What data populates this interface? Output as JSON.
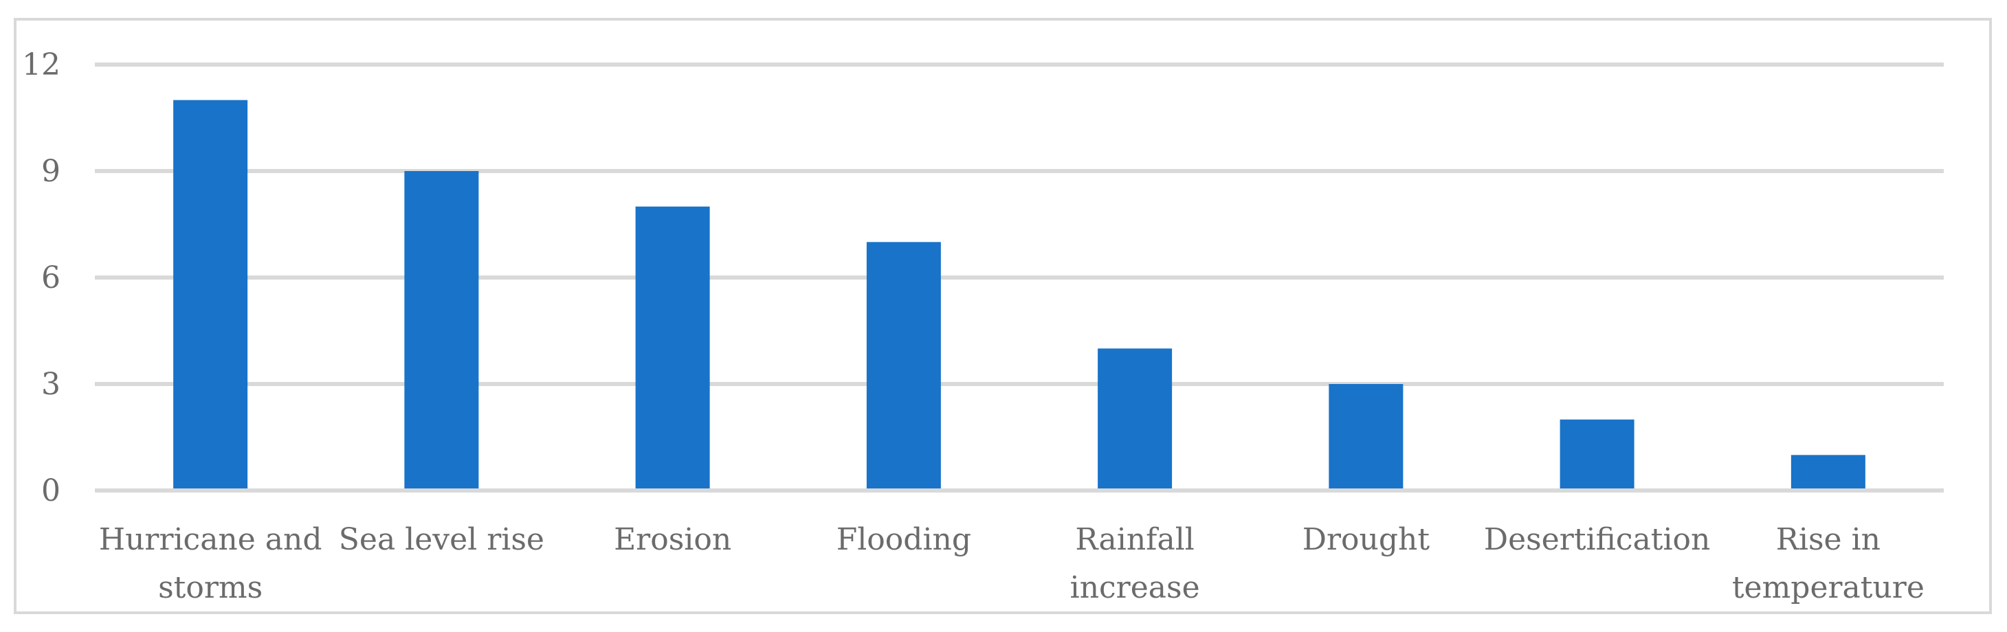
{
  "chart_data": {
    "type": "bar",
    "title": "",
    "xlabel": "",
    "ylabel": "",
    "categories": [
      [
        "Hurricane and",
        "storms"
      ],
      [
        "Sea level rise"
      ],
      [
        "Erosion"
      ],
      [
        "Flooding"
      ],
      [
        "Rainfall",
        "increase"
      ],
      [
        "Drought"
      ],
      [
        "Desertification"
      ],
      [
        "Rise in",
        "temperature"
      ]
    ],
    "values": [
      11,
      9,
      8,
      7,
      4,
      3,
      2,
      1
    ],
    "ylim": [
      0,
      12
    ],
    "yticks": [
      "0",
      "3",
      "6",
      "9",
      "12"
    ],
    "ytick_values": [
      0,
      3,
      6,
      9,
      12
    ],
    "grid": true,
    "legend": "none",
    "bar_color": "#1873C9",
    "grid_color": "#D9D9D9",
    "text_color": "#6B6B6B"
  }
}
